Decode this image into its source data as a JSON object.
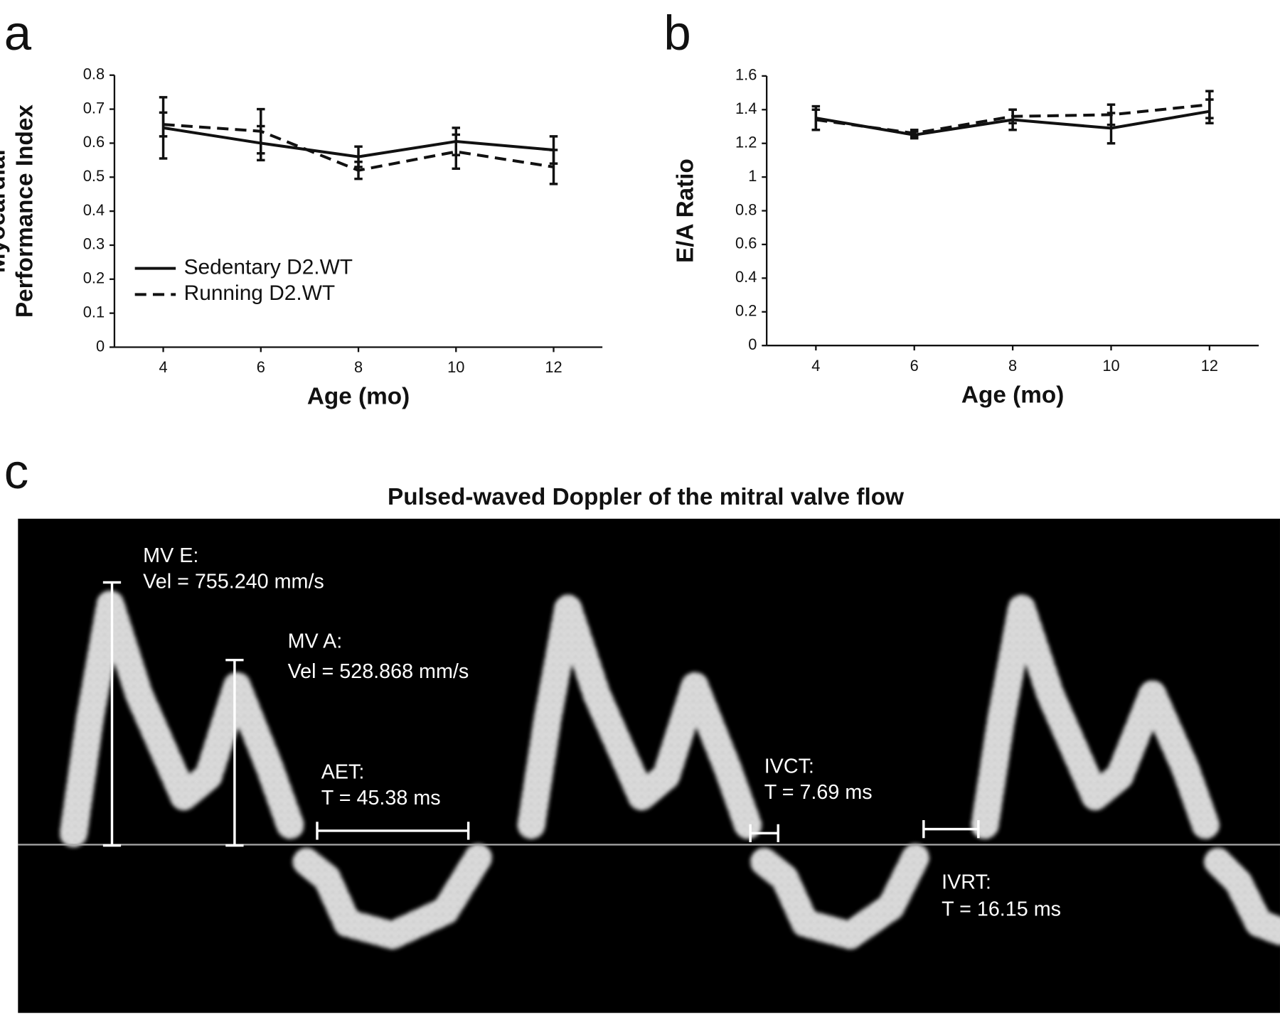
{
  "chart_data": [
    {
      "type": "line",
      "panel_label": "a",
      "xlabel": "Age (mo)",
      "ylabel": [
        "Myocardial",
        "Performance Index"
      ],
      "x": [
        4,
        6,
        8,
        10,
        12
      ],
      "xlim": [
        3,
        13
      ],
      "xticks": [
        4,
        6,
        8,
        10,
        12
      ],
      "ylim": [
        0,
        0.8
      ],
      "yticks": [
        0,
        0.1,
        0.2,
        0.3,
        0.4,
        0.5,
        0.6,
        0.7,
        0.8
      ],
      "legend": "center left",
      "series": [
        {
          "name": "Sedentary D2.WT",
          "color": "#111111",
          "line_style": "solid",
          "values": [
            0.645,
            0.6,
            0.56,
            0.605,
            0.58
          ],
          "errors": [
            0.09,
            0.05,
            0.03,
            0.04,
            0.04
          ]
        },
        {
          "name": "Running D2.WT",
          "color": "#111111",
          "line_style": "dashed",
          "values": [
            0.655,
            0.635,
            0.52,
            0.575,
            0.53
          ],
          "errors": [
            0.035,
            0.065,
            0.025,
            0.05,
            0.05
          ]
        }
      ]
    },
    {
      "type": "line",
      "panel_label": "b",
      "xlabel": "Age (mo)",
      "ylabel": [
        "E/A Ratio"
      ],
      "x": [
        4,
        6,
        8,
        10,
        12
      ],
      "xlim": [
        3,
        13
      ],
      "xticks": [
        4,
        6,
        8,
        10,
        12
      ],
      "ylim": [
        0,
        1.6
      ],
      "yticks": [
        0,
        0.2,
        0.4,
        0.6,
        0.8,
        1,
        1.2,
        1.4,
        1.6
      ],
      "series": [
        {
          "color": "#111111",
          "line_style": "solid",
          "values": [
            1.35,
            1.25,
            1.34,
            1.29,
            1.39
          ],
          "errors": [
            0.07,
            0.02,
            0.06,
            0.09,
            0.07
          ]
        },
        {
          "color": "#111111",
          "line_style": "dashed",
          "values": [
            1.34,
            1.26,
            1.36,
            1.37,
            1.43
          ],
          "errors": [
            0.06,
            0.02,
            0.04,
            0.06,
            0.08
          ]
        }
      ]
    }
  ],
  "doppler": {
    "panel_label": "c",
    "title": "Pulsed-waved Doppler of the mitral valve flow",
    "annotations": [
      {
        "label": "MV E:",
        "value": "Vel = 755.240 mm/s"
      },
      {
        "label": "MV A:",
        "value": "Vel = 528.868 mm/s"
      },
      {
        "label": "AET:",
        "value": "T = 45.38 ms"
      },
      {
        "label": "IVCT:",
        "value": "T = 7.69 ms"
      },
      {
        "label": "IVRT:",
        "value": "T = 16.15 ms"
      }
    ]
  }
}
